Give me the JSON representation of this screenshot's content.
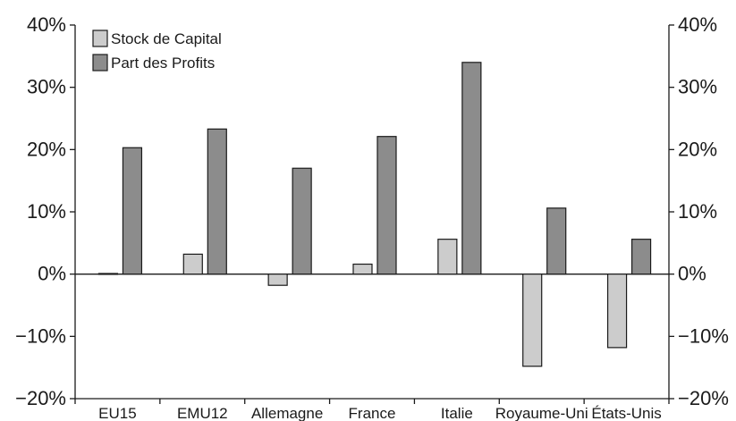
{
  "chart_data": {
    "type": "bar",
    "categories": [
      "EU15",
      "EMU12",
      "Allemagne",
      "France",
      "Italie",
      "Royaume-Uni",
      "États-Unis"
    ],
    "series": [
      {
        "name": "Stock de Capital",
        "values": [
          0.1,
          3.2,
          -1.8,
          1.6,
          5.6,
          -14.8,
          -11.8
        ],
        "color": "#cccccc"
      },
      {
        "name": "Part des Profits",
        "values": [
          20.3,
          23.3,
          17.0,
          22.1,
          34.0,
          10.6,
          5.6
        ],
        "color": "#8c8c8c"
      }
    ],
    "ylim": [
      -20,
      40
    ],
    "yticks": [
      -20,
      -10,
      0,
      10,
      20,
      30,
      40
    ],
    "ytick_labels": [
      "−20%",
      "−10%",
      "0%",
      "10%",
      "20%",
      "30%",
      "40%"
    ],
    "title": "",
    "xlabel": "",
    "ylabel": "",
    "legend_position": "top-left",
    "grid": false,
    "y_axis_both_sides": true
  }
}
